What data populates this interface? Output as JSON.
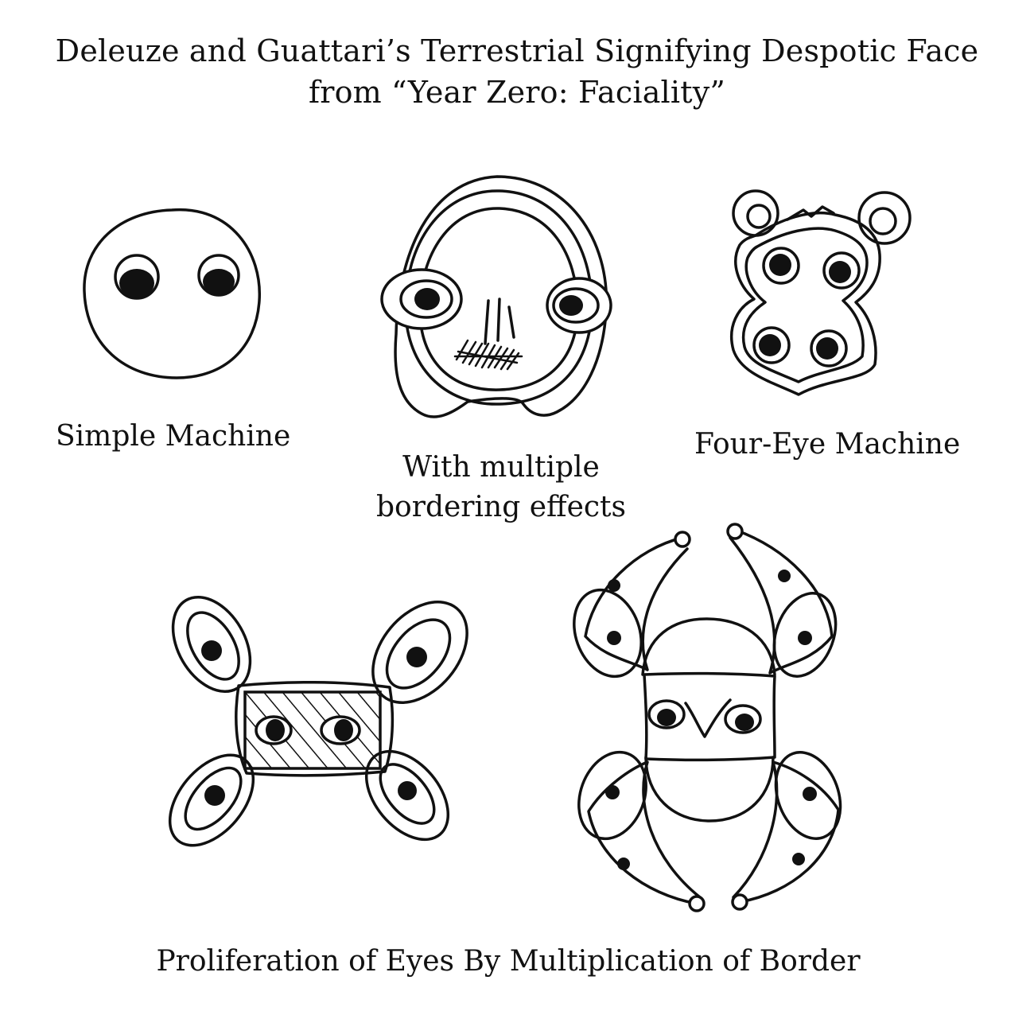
{
  "title": {
    "line1": "Deleuze and Guattari’s Terrestrial Signifying Despotic Face",
    "line2": "from “Year Zero: Faciality”"
  },
  "figures": {
    "simple": {
      "caption": "Simple Machine"
    },
    "bordering": {
      "caption_line1": "With multiple",
      "caption_line2": "bordering effects"
    },
    "four_eye": {
      "caption": "Four-Eye Machine"
    },
    "proliferation": {
      "caption": "Proliferation of Eyes By Multiplication of Border"
    }
  },
  "colors": {
    "ink": "#111111",
    "paper": "#ffffff"
  }
}
